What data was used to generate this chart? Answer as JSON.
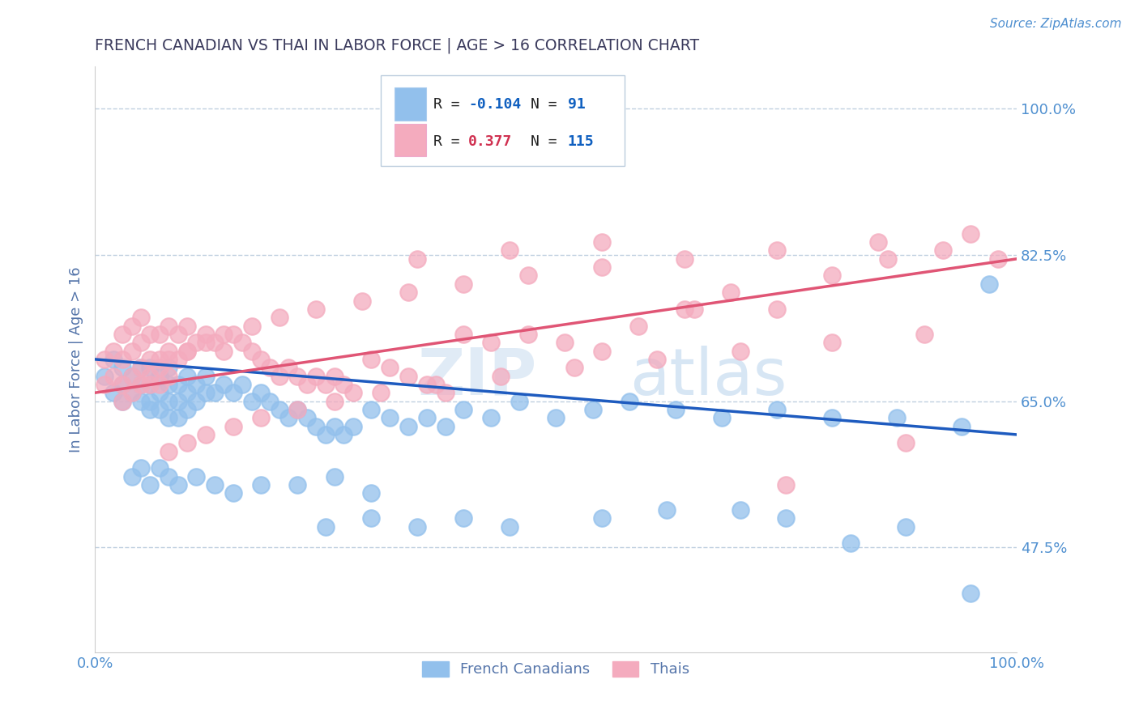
{
  "title": "FRENCH CANADIAN VS THAI IN LABOR FORCE | AGE > 16 CORRELATION CHART",
  "source_text": "Source: ZipAtlas.com",
  "ylabel": "In Labor Force | Age > 16",
  "xlim": [
    0.0,
    1.0
  ],
  "ylim": [
    0.35,
    1.05
  ],
  "yticks": [
    0.475,
    0.65,
    0.825,
    1.0
  ],
  "ytick_labels": [
    "47.5%",
    "65.0%",
    "82.5%",
    "100.0%"
  ],
  "xtick_labels": [
    "0.0%",
    "100.0%"
  ],
  "xticks": [
    0.0,
    1.0
  ],
  "blue_color": "#92C0EC",
  "pink_color": "#F4ABBE",
  "blue_line_color": "#1E5BBF",
  "pink_line_color": "#E05575",
  "blue_r_color": "#1060C0",
  "pink_r_color": "#D03050",
  "n_color": "#1060C0",
  "watermark": "ZIPatlas",
  "background_color": "#FFFFFF",
  "title_color": "#3A3A5C",
  "axis_label_color": "#5575AA",
  "tick_label_color": "#5090D0",
  "grid_color": "#C0D0E0",
  "blue_trend_y_start": 0.7,
  "blue_trend_y_end": 0.61,
  "pink_trend_y_start": 0.66,
  "pink_trend_y_end": 0.82,
  "blue_scatter_x": [
    0.01,
    0.02,
    0.02,
    0.03,
    0.03,
    0.03,
    0.04,
    0.04,
    0.05,
    0.05,
    0.05,
    0.06,
    0.06,
    0.06,
    0.06,
    0.07,
    0.07,
    0.07,
    0.08,
    0.08,
    0.08,
    0.08,
    0.09,
    0.09,
    0.09,
    0.1,
    0.1,
    0.1,
    0.11,
    0.11,
    0.12,
    0.12,
    0.13,
    0.14,
    0.15,
    0.16,
    0.17,
    0.18,
    0.19,
    0.2,
    0.21,
    0.22,
    0.23,
    0.24,
    0.25,
    0.26,
    0.27,
    0.28,
    0.3,
    0.32,
    0.34,
    0.36,
    0.38,
    0.4,
    0.43,
    0.46,
    0.5,
    0.54,
    0.58,
    0.63,
    0.68,
    0.74,
    0.8,
    0.87,
    0.94,
    0.04,
    0.05,
    0.06,
    0.07,
    0.08,
    0.09,
    0.11,
    0.13,
    0.15,
    0.18,
    0.22,
    0.26,
    0.3,
    0.25,
    0.3,
    0.35,
    0.4,
    0.45,
    0.55,
    0.62,
    0.7,
    0.75,
    0.82,
    0.88,
    0.95,
    0.97
  ],
  "blue_scatter_y": [
    0.68,
    0.66,
    0.7,
    0.67,
    0.65,
    0.69,
    0.66,
    0.68,
    0.67,
    0.65,
    0.69,
    0.67,
    0.65,
    0.69,
    0.64,
    0.66,
    0.68,
    0.64,
    0.67,
    0.65,
    0.69,
    0.63,
    0.67,
    0.65,
    0.63,
    0.68,
    0.66,
    0.64,
    0.67,
    0.65,
    0.66,
    0.68,
    0.66,
    0.67,
    0.66,
    0.67,
    0.65,
    0.66,
    0.65,
    0.64,
    0.63,
    0.64,
    0.63,
    0.62,
    0.61,
    0.62,
    0.61,
    0.62,
    0.64,
    0.63,
    0.62,
    0.63,
    0.62,
    0.64,
    0.63,
    0.65,
    0.63,
    0.64,
    0.65,
    0.64,
    0.63,
    0.64,
    0.63,
    0.63,
    0.62,
    0.56,
    0.57,
    0.55,
    0.57,
    0.56,
    0.55,
    0.56,
    0.55,
    0.54,
    0.55,
    0.55,
    0.56,
    0.54,
    0.5,
    0.51,
    0.5,
    0.51,
    0.5,
    0.51,
    0.52,
    0.52,
    0.51,
    0.48,
    0.5,
    0.42,
    0.79
  ],
  "pink_scatter_x": [
    0.01,
    0.01,
    0.02,
    0.02,
    0.03,
    0.03,
    0.03,
    0.04,
    0.04,
    0.04,
    0.05,
    0.05,
    0.05,
    0.06,
    0.06,
    0.06,
    0.07,
    0.07,
    0.07,
    0.08,
    0.08,
    0.08,
    0.09,
    0.09,
    0.1,
    0.1,
    0.11,
    0.12,
    0.13,
    0.14,
    0.15,
    0.16,
    0.17,
    0.18,
    0.19,
    0.2,
    0.21,
    0.22,
    0.23,
    0.24,
    0.25,
    0.26,
    0.27,
    0.28,
    0.3,
    0.32,
    0.34,
    0.36,
    0.38,
    0.4,
    0.43,
    0.47,
    0.51,
    0.55,
    0.59,
    0.64,
    0.69,
    0.74,
    0.8,
    0.86,
    0.92,
    0.98,
    0.03,
    0.04,
    0.05,
    0.06,
    0.07,
    0.08,
    0.1,
    0.12,
    0.14,
    0.17,
    0.2,
    0.24,
    0.29,
    0.34,
    0.4,
    0.47,
    0.55,
    0.64,
    0.74,
    0.85,
    0.95,
    0.08,
    0.1,
    0.12,
    0.15,
    0.18,
    0.22,
    0.26,
    0.31,
    0.37,
    0.44,
    0.52,
    0.61,
    0.7,
    0.8,
    0.9,
    0.35,
    0.45,
    0.55,
    0.65,
    0.75,
    0.88
  ],
  "pink_scatter_y": [
    0.7,
    0.67,
    0.71,
    0.68,
    0.73,
    0.7,
    0.67,
    0.74,
    0.71,
    0.68,
    0.75,
    0.72,
    0.69,
    0.73,
    0.7,
    0.67,
    0.73,
    0.7,
    0.67,
    0.74,
    0.71,
    0.68,
    0.73,
    0.7,
    0.74,
    0.71,
    0.72,
    0.73,
    0.72,
    0.71,
    0.73,
    0.72,
    0.71,
    0.7,
    0.69,
    0.68,
    0.69,
    0.68,
    0.67,
    0.68,
    0.67,
    0.68,
    0.67,
    0.66,
    0.7,
    0.69,
    0.68,
    0.67,
    0.66,
    0.73,
    0.72,
    0.73,
    0.72,
    0.71,
    0.74,
    0.76,
    0.78,
    0.76,
    0.8,
    0.82,
    0.83,
    0.82,
    0.65,
    0.66,
    0.67,
    0.68,
    0.69,
    0.7,
    0.71,
    0.72,
    0.73,
    0.74,
    0.75,
    0.76,
    0.77,
    0.78,
    0.79,
    0.8,
    0.81,
    0.82,
    0.83,
    0.84,
    0.85,
    0.59,
    0.6,
    0.61,
    0.62,
    0.63,
    0.64,
    0.65,
    0.66,
    0.67,
    0.68,
    0.69,
    0.7,
    0.71,
    0.72,
    0.73,
    0.82,
    0.83,
    0.84,
    0.76,
    0.55,
    0.6
  ]
}
